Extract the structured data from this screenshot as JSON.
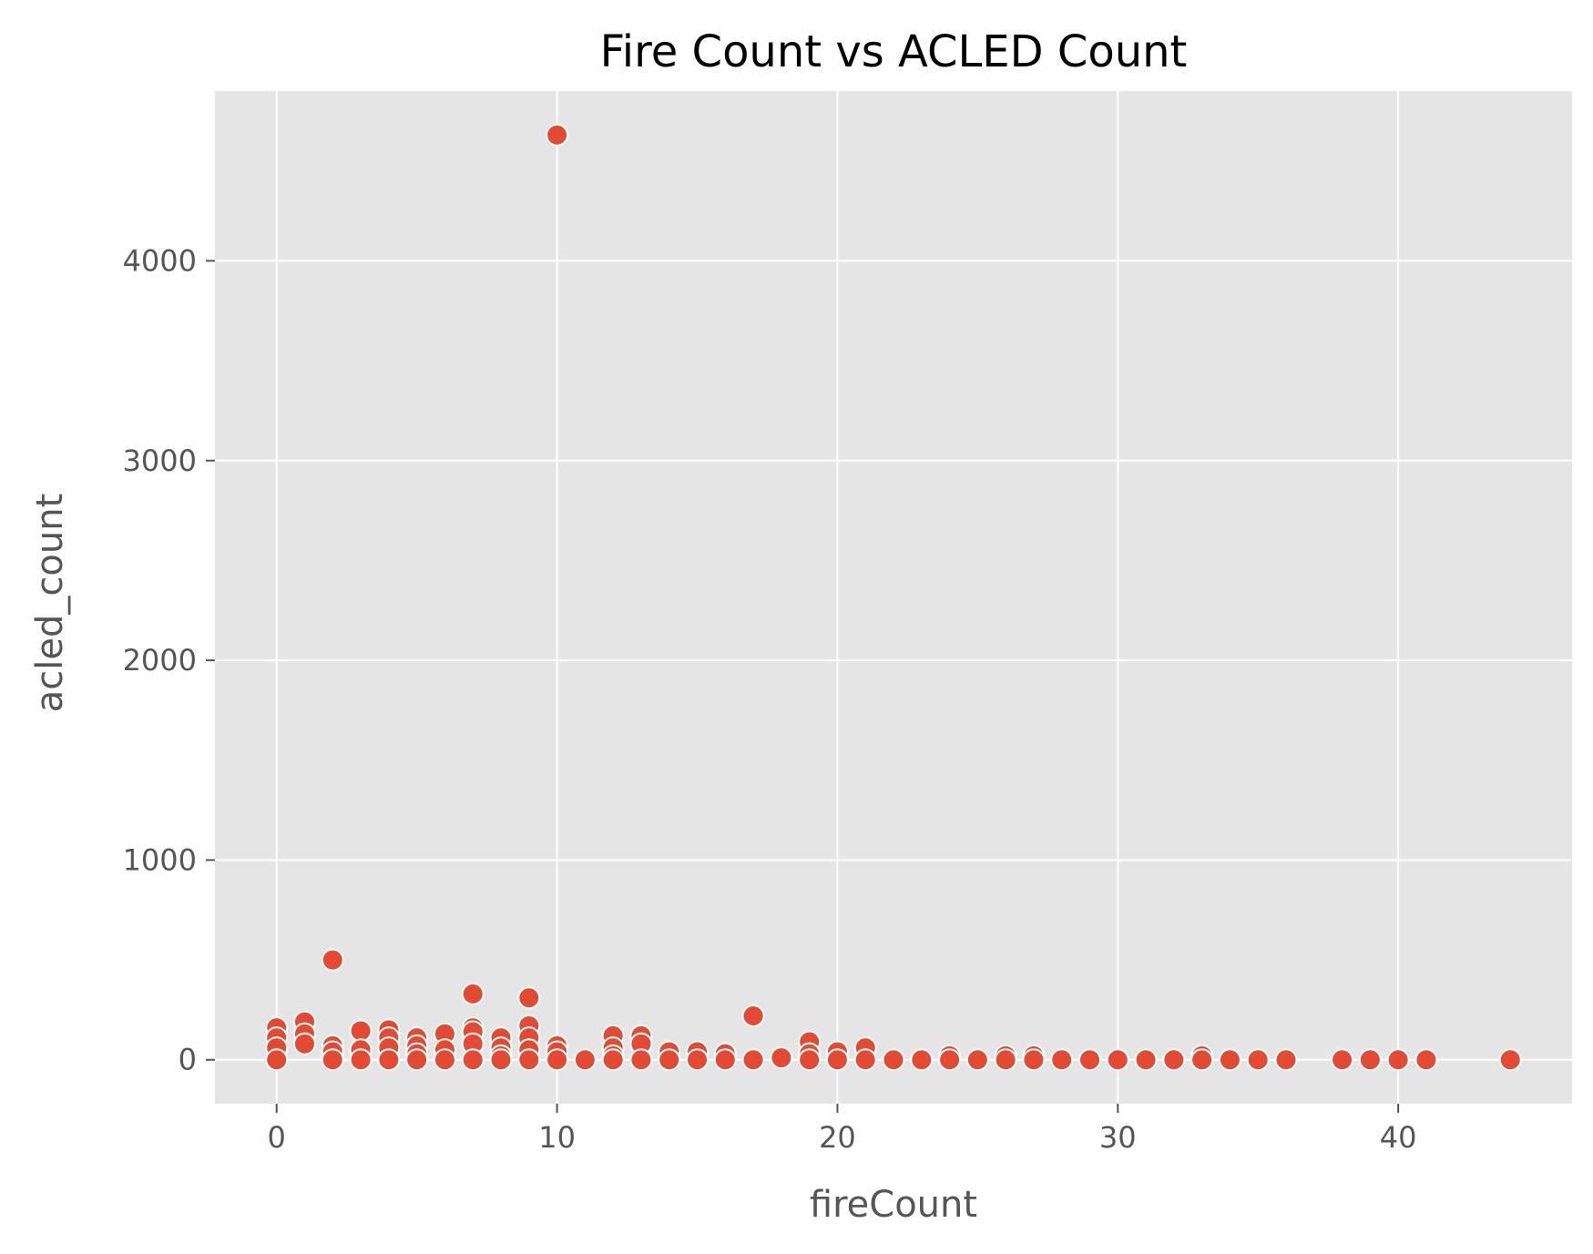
{
  "chart_data": {
    "type": "scatter",
    "title": "Fire Count vs ACLED Count",
    "xlabel": "fireCount",
    "ylabel": "acled_count",
    "xlim": [
      -2.2,
      46.2
    ],
    "ylim": [
      -220,
      4850
    ],
    "x_ticks": [
      0,
      10,
      20,
      30,
      40
    ],
    "x_tick_labels": [
      "0",
      "10",
      "20",
      "30",
      "40"
    ],
    "y_ticks": [
      0,
      1000,
      2000,
      3000,
      4000
    ],
    "y_tick_labels": [
      "0",
      "1000",
      "2000",
      "3000",
      "4000"
    ],
    "grid": true,
    "legend": "none",
    "colors": {
      "point": "#E24A33",
      "point_edge": "#ffffff",
      "background": "#E5E5E5",
      "grid": "#ffffff"
    },
    "x": [
      10,
      2,
      7,
      9,
      17,
      1,
      0,
      1,
      1,
      0,
      0,
      0,
      2,
      2,
      2,
      3,
      3,
      3,
      4,
      4,
      4,
      4,
      5,
      5,
      5,
      5,
      6,
      6,
      6,
      7,
      7,
      7,
      7,
      8,
      8,
      8,
      8,
      9,
      9,
      9,
      9,
      10,
      10,
      10,
      11,
      12,
      12,
      12,
      12,
      13,
      13,
      13,
      14,
      14,
      15,
      15,
      16,
      16,
      17,
      18,
      19,
      19,
      19,
      20,
      20,
      21,
      21,
      22,
      23,
      24,
      24,
      25,
      26,
      26,
      27,
      27,
      28,
      29,
      30,
      31,
      32,
      33,
      33,
      34,
      35,
      36,
      38,
      39,
      40,
      41,
      44
    ],
    "y": [
      4630,
      500,
      330,
      310,
      220,
      190,
      160,
      130,
      80,
      110,
      60,
      0,
      70,
      40,
      0,
      145,
      50,
      0,
      150,
      110,
      60,
      0,
      110,
      70,
      30,
      0,
      130,
      50,
      0,
      160,
      140,
      80,
      0,
      110,
      60,
      20,
      0,
      170,
      110,
      50,
      0,
      70,
      40,
      0,
      0,
      120,
      60,
      20,
      0,
      120,
      80,
      0,
      40,
      0,
      40,
      0,
      30,
      0,
      0,
      10,
      90,
      30,
      0,
      40,
      0,
      60,
      0,
      0,
      0,
      20,
      0,
      0,
      20,
      0,
      20,
      0,
      0,
      0,
      0,
      0,
      0,
      20,
      0,
      0,
      0,
      0,
      0,
      0,
      0,
      0,
      0
    ]
  }
}
